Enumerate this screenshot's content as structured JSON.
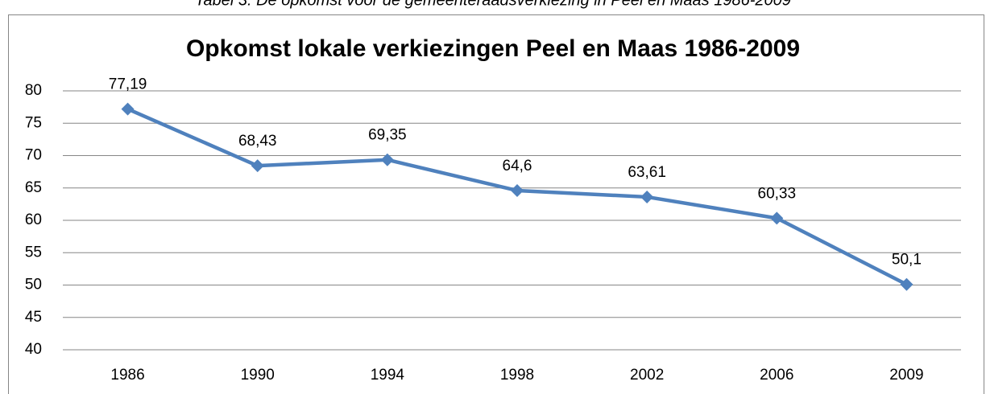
{
  "caption": "Tabel 3: De opkomst voor de gemeenteraadsverkiezing in Peel en Maas 1986-2009",
  "chart_data": {
    "type": "line",
    "title": "Opkomst lokale verkiezingen Peel en Maas 1986-2009",
    "categories": [
      "1986",
      "1990",
      "1994",
      "1998",
      "2002",
      "2006",
      "2009"
    ],
    "values": [
      77.19,
      68.43,
      69.35,
      64.6,
      63.61,
      60.33,
      50.1
    ],
    "value_labels": [
      "77,19",
      "68,43",
      "69,35",
      "64,6",
      "63,61",
      "60,33",
      "50,1"
    ],
    "color": "#4f81bd",
    "ylim": [
      40,
      80
    ],
    "yticks": [
      40,
      45,
      50,
      55,
      60,
      65,
      70,
      75,
      80
    ],
    "grid": true
  }
}
